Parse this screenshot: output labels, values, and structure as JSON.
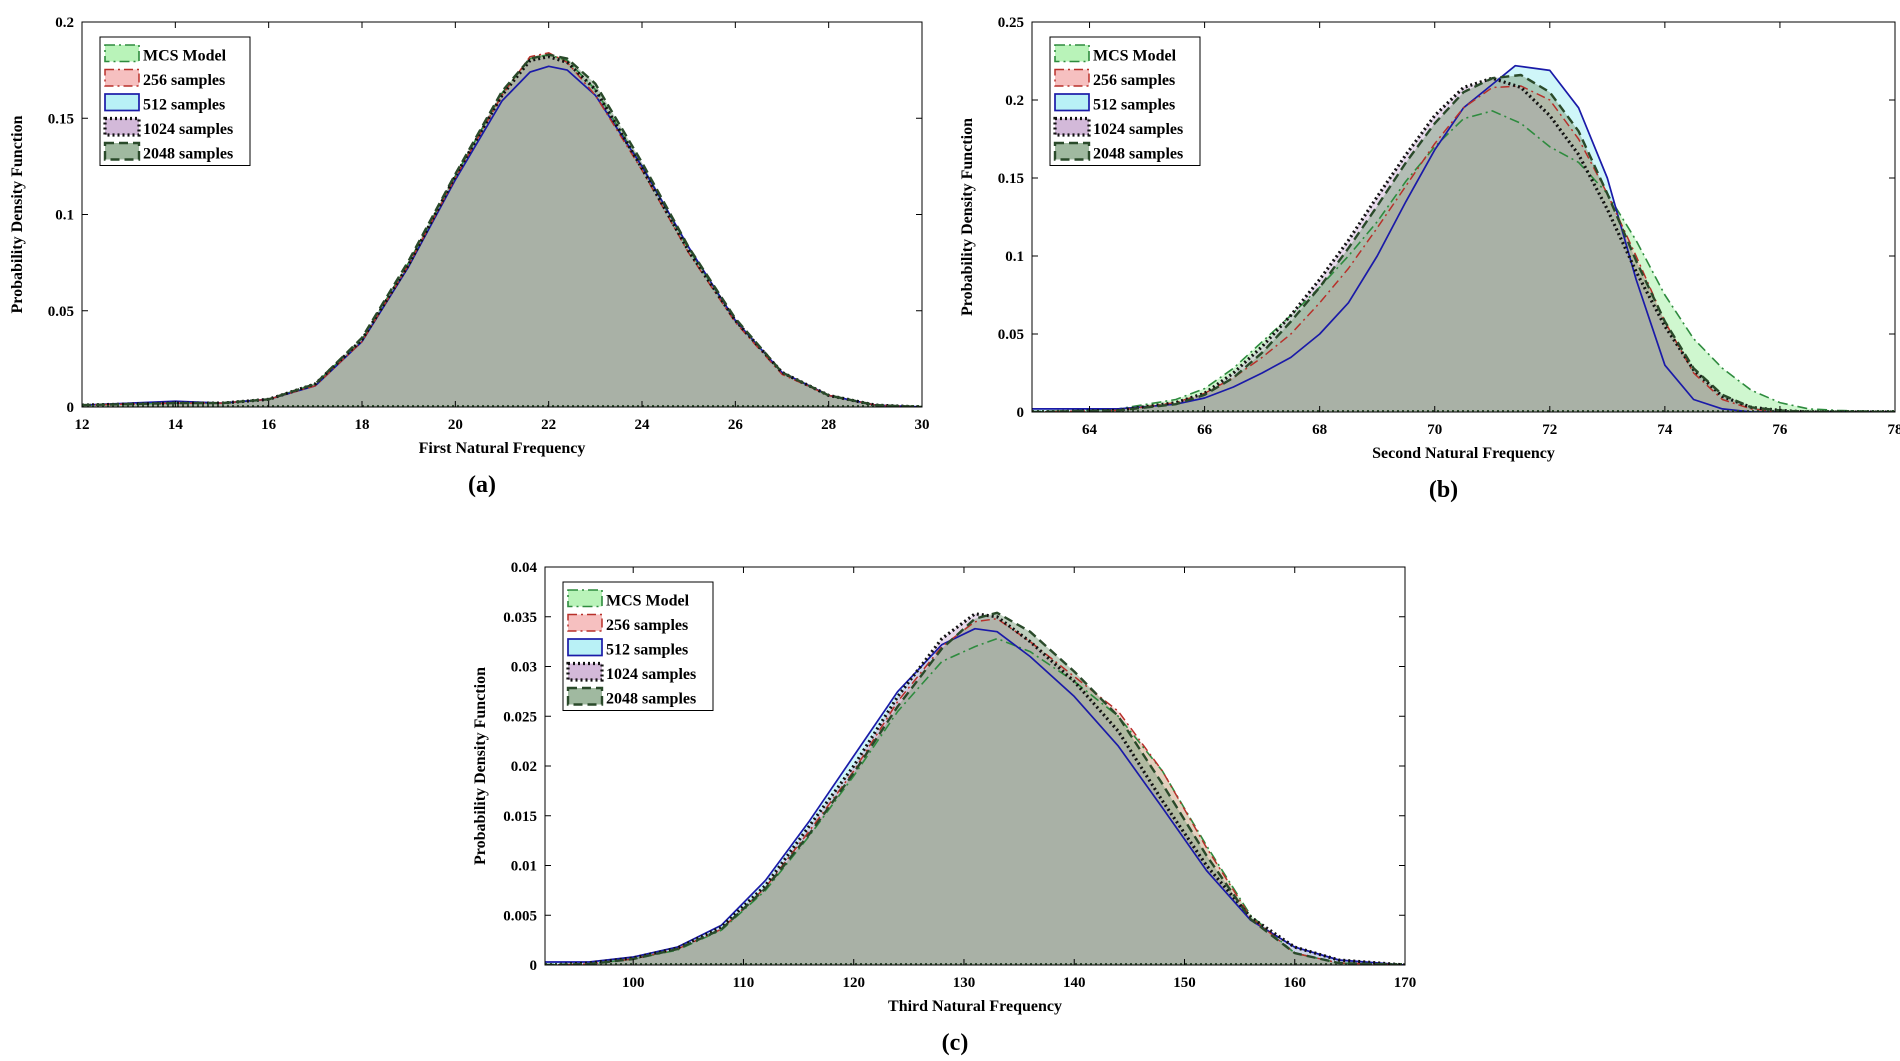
{
  "chart_data": [
    {
      "type": "area",
      "panel_label": "(a)",
      "xlabel": "First Natural Frequency",
      "ylabel": "Probability Density Function",
      "xlim": [
        12,
        30
      ],
      "ylim": [
        0,
        0.2
      ],
      "xticks": [
        12,
        14,
        16,
        18,
        20,
        22,
        24,
        26,
        28,
        30
      ],
      "xtick_labels": [
        "12",
        "14",
        "16",
        "18",
        "20",
        "22",
        "24",
        "26",
        "28",
        "30"
      ],
      "yticks": [
        0,
        0.05,
        0.1,
        0.15,
        0.2
      ],
      "ytick_labels": [
        "0",
        "0.05",
        "0.1",
        "0.15",
        "0.2"
      ],
      "legend_position": "top-left",
      "series": [
        {
          "name": "MCS Model",
          "x": [
            12,
            14,
            15,
            16,
            17,
            18,
            19,
            20,
            21,
            21.6,
            22,
            22.4,
            23,
            24,
            25,
            26,
            27,
            28,
            29,
            30
          ],
          "y": [
            0.001,
            0.002,
            0.002,
            0.004,
            0.012,
            0.035,
            0.075,
            0.12,
            0.163,
            0.181,
            0.183,
            0.18,
            0.165,
            0.125,
            0.082,
            0.045,
            0.018,
            0.006,
            0.001,
            0.0
          ]
        },
        {
          "name": "256 samples",
          "x": [
            12,
            14,
            15,
            16,
            17,
            18,
            19,
            20,
            21,
            21.6,
            22,
            22.4,
            23,
            24,
            25,
            26,
            27,
            28,
            29,
            30
          ],
          "y": [
            0.001,
            0.002,
            0.002,
            0.004,
            0.011,
            0.034,
            0.074,
            0.119,
            0.162,
            0.182,
            0.184,
            0.179,
            0.162,
            0.123,
            0.08,
            0.044,
            0.017,
            0.006,
            0.001,
            0.0
          ]
        },
        {
          "name": "512 samples",
          "x": [
            12,
            14,
            15,
            16,
            17,
            18,
            19,
            20,
            21,
            21.6,
            22,
            22.4,
            23,
            24,
            25,
            26,
            27,
            28,
            29,
            30
          ],
          "y": [
            0.001,
            0.003,
            0.002,
            0.004,
            0.011,
            0.034,
            0.073,
            0.118,
            0.159,
            0.174,
            0.177,
            0.175,
            0.162,
            0.125,
            0.083,
            0.045,
            0.018,
            0.006,
            0.001,
            0.0
          ]
        },
        {
          "name": "1024 samples",
          "x": [
            12,
            14,
            15,
            16,
            17,
            18,
            19,
            20,
            21,
            21.6,
            22,
            22.4,
            23,
            24,
            25,
            26,
            27,
            28,
            29,
            30
          ],
          "y": [
            0.001,
            0.002,
            0.002,
            0.004,
            0.012,
            0.035,
            0.074,
            0.12,
            0.162,
            0.18,
            0.182,
            0.179,
            0.165,
            0.124,
            0.081,
            0.045,
            0.018,
            0.006,
            0.001,
            0.0
          ]
        },
        {
          "name": "2048 samples",
          "x": [
            12,
            14,
            15,
            16,
            17,
            18,
            19,
            20,
            21,
            21.6,
            22,
            22.4,
            23,
            24,
            25,
            26,
            27,
            28,
            29,
            30
          ],
          "y": [
            0.001,
            0.002,
            0.002,
            0.004,
            0.012,
            0.036,
            0.076,
            0.121,
            0.164,
            0.181,
            0.183,
            0.181,
            0.168,
            0.127,
            0.083,
            0.046,
            0.018,
            0.006,
            0.001,
            0.0
          ]
        }
      ]
    },
    {
      "type": "area",
      "panel_label": "(b)",
      "xlabel": "Second Natural Frequency",
      "ylabel": "Probability Density Function",
      "xlim": [
        63,
        78
      ],
      "ylim": [
        0,
        0.25
      ],
      "xticks": [
        64,
        66,
        68,
        70,
        72,
        74,
        76,
        78
      ],
      "xtick_labels": [
        "64",
        "66",
        "68",
        "70",
        "72",
        "74",
        "76",
        "78"
      ],
      "yticks": [
        0,
        0.05,
        0.1,
        0.15,
        0.2,
        0.25
      ],
      "ytick_labels": [
        "0",
        "0.05",
        "0.1",
        "0.15",
        "0.2",
        "0.25"
      ],
      "legend_position": "top-left",
      "series": [
        {
          "name": "MCS Model",
          "x": [
            63,
            64.5,
            65.5,
            66,
            66.5,
            67,
            67.5,
            68,
            68.5,
            69,
            69.5,
            70,
            70.5,
            71,
            71.5,
            72,
            72.5,
            73,
            73.5,
            74,
            74.5,
            75,
            75.5,
            76,
            76.5,
            77,
            78
          ],
          "y": [
            0.0,
            0.002,
            0.008,
            0.015,
            0.028,
            0.045,
            0.062,
            0.08,
            0.1,
            0.122,
            0.148,
            0.17,
            0.188,
            0.193,
            0.185,
            0.17,
            0.16,
            0.14,
            0.11,
            0.075,
            0.047,
            0.028,
            0.014,
            0.006,
            0.002,
            0.001,
            0.0
          ]
        },
        {
          "name": "256 samples",
          "x": [
            63,
            64.5,
            65.5,
            66,
            66.5,
            67,
            67.5,
            68,
            68.5,
            69,
            69.5,
            70,
            70.5,
            71,
            71.5,
            72,
            72.5,
            73,
            73.5,
            74,
            74.5,
            75,
            75.5,
            76,
            76.5,
            77,
            78
          ],
          "y": [
            0.0,
            0.001,
            0.006,
            0.012,
            0.022,
            0.035,
            0.05,
            0.07,
            0.092,
            0.118,
            0.145,
            0.172,
            0.195,
            0.208,
            0.209,
            0.2,
            0.175,
            0.14,
            0.1,
            0.058,
            0.025,
            0.008,
            0.002,
            0.0,
            0.0,
            0.0,
            0.0
          ]
        },
        {
          "name": "512 samples",
          "x": [
            63,
            64.5,
            65.5,
            66,
            66.5,
            67,
            67.5,
            68,
            68.5,
            69,
            69.5,
            70,
            70.5,
            71,
            71.4,
            72,
            72.5,
            73,
            73.5,
            74,
            74.5,
            75,
            75.5,
            76,
            76.5,
            77,
            78
          ],
          "y": [
            0.002,
            0.002,
            0.005,
            0.009,
            0.016,
            0.025,
            0.035,
            0.05,
            0.07,
            0.1,
            0.135,
            0.168,
            0.195,
            0.21,
            0.222,
            0.219,
            0.195,
            0.15,
            0.085,
            0.03,
            0.008,
            0.002,
            0.0,
            0.0,
            0.0,
            0.0,
            0.0
          ]
        },
        {
          "name": "1024 samples",
          "x": [
            63,
            64.5,
            65.5,
            66,
            66.5,
            67,
            67.5,
            68,
            68.5,
            69,
            69.5,
            70,
            70.5,
            71,
            71.5,
            72,
            72.5,
            73,
            73.5,
            74,
            74.5,
            75,
            75.5,
            76,
            76.5,
            77,
            78
          ],
          "y": [
            0.0,
            0.001,
            0.006,
            0.012,
            0.025,
            0.042,
            0.062,
            0.085,
            0.11,
            0.138,
            0.165,
            0.19,
            0.208,
            0.214,
            0.208,
            0.19,
            0.165,
            0.13,
            0.09,
            0.055,
            0.027,
            0.01,
            0.003,
            0.001,
            0.0,
            0.0,
            0.0
          ]
        },
        {
          "name": "2048 samples",
          "x": [
            63,
            64.5,
            65.5,
            66,
            66.5,
            67,
            67.5,
            68,
            68.5,
            69,
            69.5,
            70,
            70.5,
            71,
            71.5,
            72,
            72.5,
            73,
            73.5,
            74,
            74.5,
            75,
            75.5,
            76,
            76.5,
            77,
            78
          ],
          "y": [
            0.0,
            0.001,
            0.005,
            0.011,
            0.022,
            0.038,
            0.058,
            0.08,
            0.105,
            0.132,
            0.16,
            0.185,
            0.205,
            0.214,
            0.216,
            0.205,
            0.18,
            0.14,
            0.097,
            0.058,
            0.028,
            0.011,
            0.003,
            0.001,
            0.0,
            0.0,
            0.0
          ]
        }
      ]
    },
    {
      "type": "area",
      "panel_label": "(c)",
      "xlabel": "Third Natural Frequency",
      "ylabel": "Probability Density Function",
      "xlim": [
        92,
        170
      ],
      "ylim": [
        0,
        0.04
      ],
      "xticks": [
        100,
        110,
        120,
        130,
        140,
        150,
        160,
        170
      ],
      "xtick_labels": [
        "100",
        "110",
        "120",
        "130",
        "140",
        "150",
        "160",
        "170"
      ],
      "yticks": [
        0,
        0.005,
        0.01,
        0.015,
        0.02,
        0.025,
        0.03,
        0.035,
        0.04
      ],
      "ytick_labels": [
        "0",
        "0.005",
        "0.01",
        "0.015",
        "0.02",
        "0.025",
        "0.03",
        "0.035",
        "0.04"
      ],
      "legend_position": "top-left",
      "series": [
        {
          "name": "MCS Model",
          "x": [
            92,
            96,
            100,
            104,
            108,
            112,
            116,
            120,
            124,
            128,
            131,
            133,
            136,
            140,
            144,
            148,
            152,
            156,
            160,
            164,
            170
          ],
          "y": [
            0.0,
            0.0001,
            0.0006,
            0.0015,
            0.0035,
            0.0075,
            0.013,
            0.019,
            0.0255,
            0.0305,
            0.032,
            0.0328,
            0.0315,
            0.0285,
            0.025,
            0.0195,
            0.012,
            0.005,
            0.0012,
            0.0002,
            0.0
          ]
        },
        {
          "name": "256 samples",
          "x": [
            92,
            96,
            100,
            104,
            108,
            112,
            116,
            120,
            124,
            128,
            131,
            133,
            136,
            140,
            144,
            148,
            152,
            156,
            160,
            164,
            170
          ],
          "y": [
            0.0,
            0.0001,
            0.0006,
            0.0016,
            0.0036,
            0.0078,
            0.0135,
            0.0195,
            0.0265,
            0.032,
            0.0345,
            0.0348,
            0.0325,
            0.029,
            0.0255,
            0.0195,
            0.0118,
            0.0048,
            0.0012,
            0.0002,
            0.0
          ]
        },
        {
          "name": "512 samples",
          "x": [
            92,
            96,
            100,
            104,
            108,
            112,
            116,
            120,
            124,
            128,
            131,
            133,
            136,
            140,
            144,
            148,
            152,
            156,
            160,
            164,
            170
          ],
          "y": [
            0.0003,
            0.0003,
            0.0008,
            0.0018,
            0.004,
            0.0085,
            0.0145,
            0.021,
            0.0275,
            0.0322,
            0.0338,
            0.0335,
            0.031,
            0.027,
            0.022,
            0.0158,
            0.0095,
            0.0045,
            0.0018,
            0.0005,
            0.0
          ]
        },
        {
          "name": "1024 samples",
          "x": [
            92,
            96,
            100,
            104,
            108,
            112,
            116,
            120,
            124,
            128,
            131,
            133,
            136,
            140,
            144,
            148,
            152,
            156,
            160,
            164,
            170
          ],
          "y": [
            0.0,
            0.0002,
            0.0007,
            0.0017,
            0.0038,
            0.008,
            0.014,
            0.02,
            0.027,
            0.0328,
            0.0353,
            0.035,
            0.0325,
            0.0285,
            0.0235,
            0.0165,
            0.01,
            0.0048,
            0.0018,
            0.0005,
            0.0
          ]
        },
        {
          "name": "2048 samples",
          "x": [
            92,
            96,
            100,
            104,
            108,
            112,
            116,
            120,
            124,
            128,
            131,
            133,
            136,
            140,
            144,
            148,
            152,
            156,
            160,
            164,
            170
          ],
          "y": [
            0.0,
            0.0001,
            0.0006,
            0.0016,
            0.0036,
            0.0077,
            0.0132,
            0.0193,
            0.026,
            0.0318,
            0.0348,
            0.0354,
            0.0335,
            0.0295,
            0.025,
            0.0182,
            0.011,
            0.0046,
            0.0012,
            0.0002,
            0.0
          ]
        }
      ]
    }
  ]
}
